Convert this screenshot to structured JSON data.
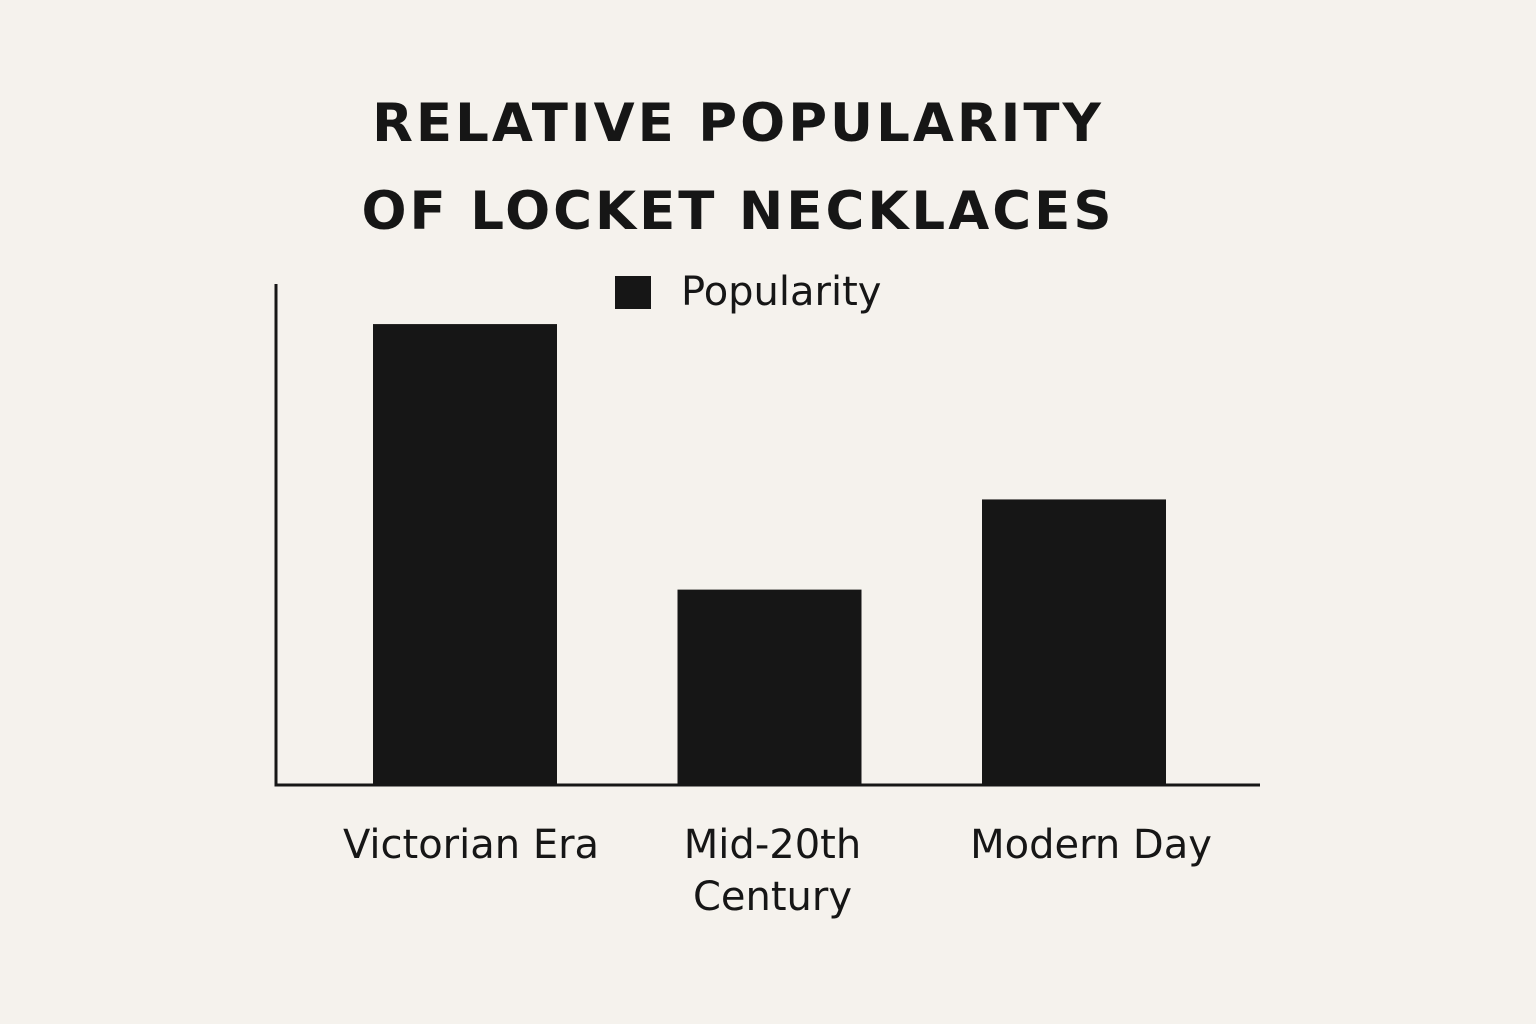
{
  "chart_data": {
    "type": "bar",
    "title_lines": [
      "RELATIVE POPULARITY",
      "OF LOCKET NECKLACES"
    ],
    "categories": [
      [
        "Victorian Era"
      ],
      [
        "Mid-20th",
        "Century"
      ],
      [
        "Modern Day"
      ]
    ],
    "series": [
      {
        "name": "Popularity",
        "values": [
          92,
          39,
          57
        ]
      }
    ],
    "ylim": [
      0,
      100
    ],
    "legend": "top-center",
    "grid": false,
    "bar_color": "#161616",
    "axis_color": "#161616",
    "background": "#f5f2ed"
  }
}
